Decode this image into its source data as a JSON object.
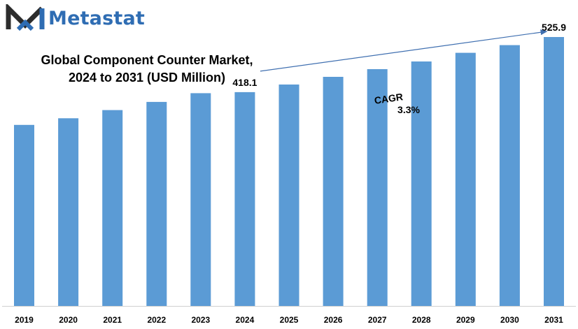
{
  "brand": {
    "name": "Metastat",
    "logo_icon": "m-chevron-logo-icon",
    "colors": {
      "logo_dark": "#2c2c2c",
      "logo_blue": "#2f6db3"
    }
  },
  "chart_data": {
    "type": "bar",
    "title_line1": "Global Component Counter Market,",
    "title_line2": "2024 to 2031 (USD Million)",
    "xlabel": "",
    "ylabel": "",
    "categories": [
      "2019",
      "2020",
      "2021",
      "2022",
      "2023",
      "2024",
      "2025",
      "2026",
      "2027",
      "2028",
      "2029",
      "2030",
      "2031"
    ],
    "values": [
      354,
      367,
      383,
      399,
      416,
      418.1,
      433,
      448,
      463,
      478,
      495,
      510,
      525.9
    ],
    "ylim": [
      0,
      560
    ],
    "grid": false,
    "legend": "none",
    "bar_color": "#5b9bd5",
    "data_labels": [
      {
        "category": "2024",
        "text": "418.1"
      },
      {
        "category": "2031",
        "text": "525.9"
      }
    ],
    "annotation": {
      "label": "CAGR",
      "value": "3.3%",
      "from_category": "2024",
      "to_category": "2031"
    }
  }
}
